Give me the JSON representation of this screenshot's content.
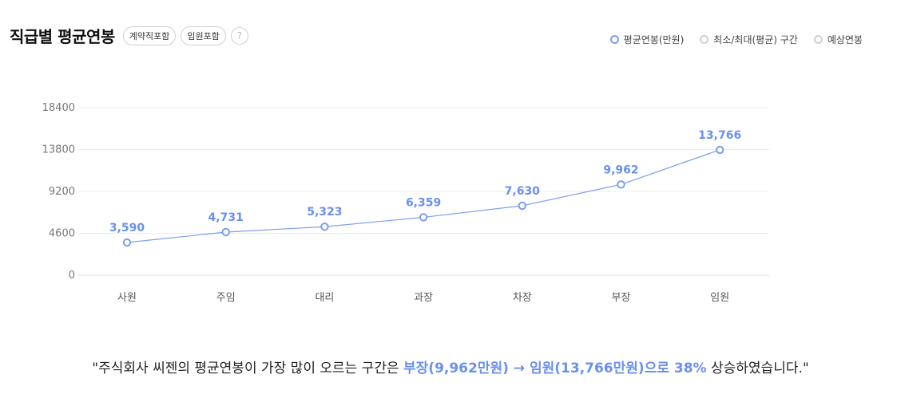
{
  "header": {
    "title": "직급별 평균연봉",
    "chip_contract": "계약직포함",
    "chip_exec": "임원포함",
    "help_glyph": "?"
  },
  "legend": {
    "avg": "평균연봉(만원)",
    "range": "최소/최대(평균) 구간",
    "expected": "예상연봉"
  },
  "colors": {
    "accent": "#6a90ee",
    "line": "#7b9ef0",
    "grid": "#ececec",
    "legend_inactive": "#cfcfcf"
  },
  "chart_data": {
    "type": "line",
    "categories": [
      "사원",
      "주임",
      "대리",
      "과장",
      "차장",
      "부장",
      "임원"
    ],
    "series": [
      {
        "name": "평균연봉(만원)",
        "values": [
          3590,
          4731,
          5323,
          6359,
          7630,
          9962,
          13766
        ]
      }
    ],
    "data_labels": [
      "3,590",
      "4,731",
      "5,323",
      "6,359",
      "7,630",
      "9,962",
      "13,766"
    ],
    "yticks": [
      "0",
      "4600",
      "9200",
      "13800",
      "18400"
    ],
    "ylim": [
      0,
      18400
    ],
    "grid": true,
    "legend_position": "top-right"
  },
  "summary": {
    "prefix": "\"주식회사 씨젠의 평균연봉이 가장 많이 오르는 구간은 ",
    "from": "부장(9,962만원)",
    "arrow": " → ",
    "to": "임원(13,766만원)",
    "mid": "으로 ",
    "pct": "38%",
    "suffix": " 상승하였습니다.\""
  }
}
